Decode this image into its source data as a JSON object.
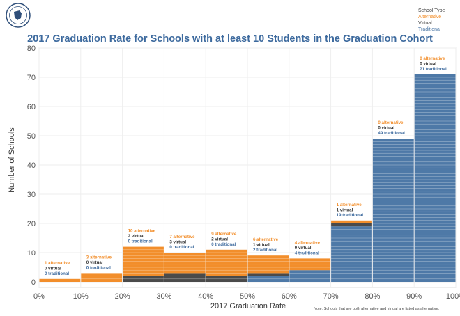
{
  "title": "2017 Graduation Rate for Schools with at least 10 Students in the Graduation Cohort",
  "legend": {
    "title": "School Type",
    "items": [
      {
        "label": "Alternative",
        "color": "#f28e2b"
      },
      {
        "label": "Virtual",
        "color": "#4a4a4a"
      },
      {
        "label": "Traditional",
        "color": "#4e79a7"
      }
    ]
  },
  "note": "Note: Schools that are both alternative and virtual are listed as alternative.",
  "chart_data": {
    "type": "bar",
    "stacked": true,
    "xlabel": "2017 Graduation Rate",
    "ylabel": "Number of Schools",
    "ylim": [
      0,
      80
    ],
    "yticks": [
      0,
      10,
      20,
      30,
      40,
      50,
      60,
      70,
      80
    ],
    "xticks": [
      "0%",
      "10%",
      "20%",
      "30%",
      "40%",
      "50%",
      "60%",
      "70%",
      "80%",
      "90%",
      "100%"
    ],
    "categories": [
      "0-10%",
      "10-20%",
      "20-30%",
      "30-40%",
      "40-50%",
      "50-60%",
      "60-70%",
      "70-80%",
      "80-90%",
      "90-100%"
    ],
    "series": [
      {
        "name": "Traditional",
        "color": "#4e79a7",
        "values": [
          0,
          0,
          0,
          0,
          0,
          2,
          4,
          19,
          49,
          71
        ]
      },
      {
        "name": "Virtual",
        "color": "#4a4a4a",
        "values": [
          0,
          0,
          2,
          3,
          2,
          1,
          0,
          1,
          0,
          0
        ]
      },
      {
        "name": "Alternative",
        "color": "#f28e2b",
        "values": [
          1,
          3,
          10,
          7,
          9,
          6,
          4,
          1,
          0,
          0
        ]
      }
    ],
    "annotations": [
      [
        "1 alternative",
        "0 virtual",
        "0 traditional"
      ],
      [
        "3 alternative",
        "0 virtual",
        "0 traditional"
      ],
      [
        "10 alternative",
        "2 virtual",
        "0 traditional"
      ],
      [
        "7 alternative",
        "3 virtual",
        "0 traditional"
      ],
      [
        "9 alternative",
        "2 virtual",
        "0 traditional"
      ],
      [
        "6 alternative",
        "1 virtual",
        "2 traditional"
      ],
      [
        "4 alternative",
        "0 virtual",
        "4 traditional"
      ],
      [
        "1 alternative",
        "1 virtual",
        "19 traditional"
      ],
      [
        "0 alternative",
        "0 virtual",
        "49 traditional"
      ],
      [
        "0 alternative",
        "0 virtual",
        "71 traditional"
      ]
    ],
    "grid": true
  }
}
